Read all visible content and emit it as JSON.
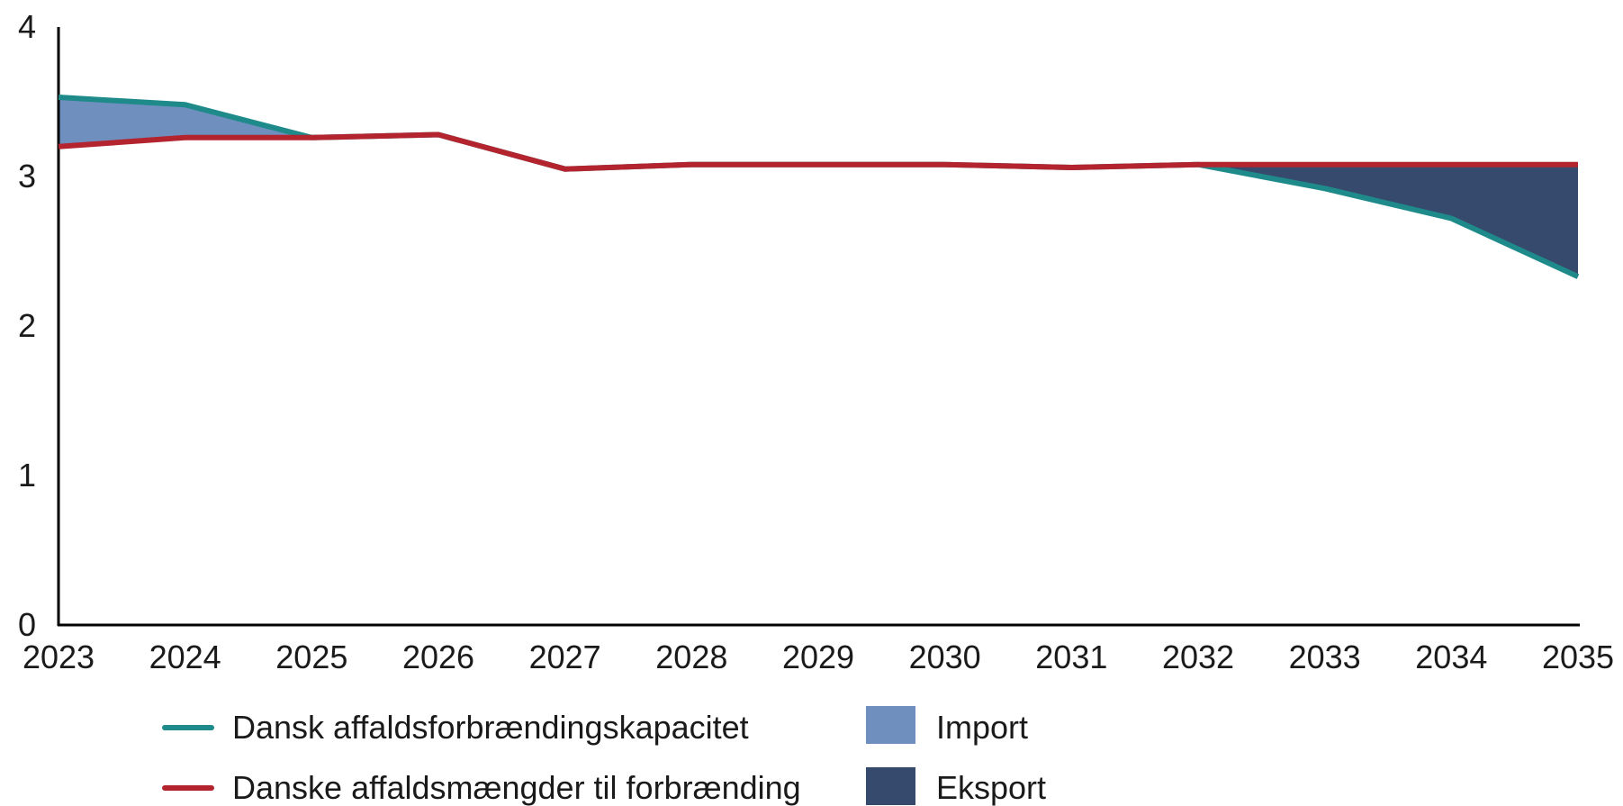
{
  "chart_data": {
    "type": "line",
    "title": "",
    "xlabel": "",
    "ylabel": "",
    "x": [
      "2023",
      "2024",
      "2025",
      "2026",
      "2027",
      "2028",
      "2029",
      "2030",
      "2031",
      "2032",
      "2033",
      "2034",
      "2035"
    ],
    "ylim": [
      0,
      4
    ],
    "yticks": [
      "0",
      "1",
      "2",
      "3",
      "4"
    ],
    "grid": false,
    "legend_position": "bottom",
    "series": [
      {
        "name": "Dansk affaldsforbrændingskapacitet",
        "color": "#1f8a8a",
        "values": [
          3.53,
          3.48,
          3.26,
          3.28,
          3.05,
          3.08,
          3.08,
          3.08,
          3.06,
          3.08,
          2.92,
          2.72,
          2.33
        ]
      },
      {
        "name": "Danske affaldsmængder til forbrænding",
        "color": "#b3242f",
        "values": [
          3.2,
          3.26,
          3.26,
          3.28,
          3.05,
          3.08,
          3.08,
          3.08,
          3.06,
          3.08,
          3.08,
          3.08,
          3.08
        ]
      }
    ],
    "areas": [
      {
        "name": "Import",
        "color": "#6f8fbf"
      },
      {
        "name": "Eksport",
        "color": "#364a6e"
      }
    ]
  }
}
